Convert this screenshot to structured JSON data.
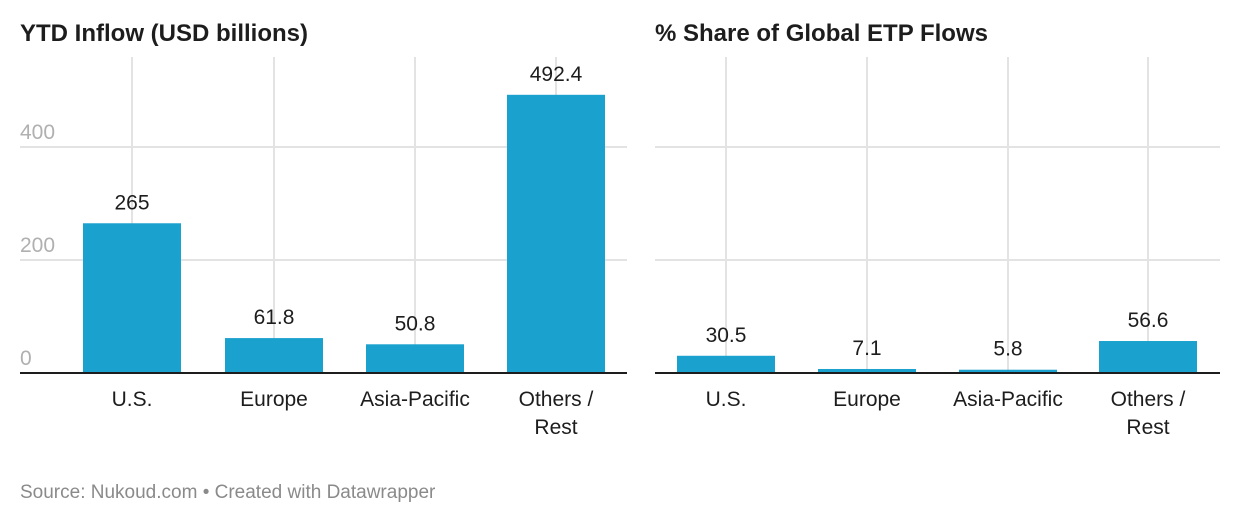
{
  "chart_data": [
    {
      "type": "bar",
      "title": "YTD Inflow (USD billions)",
      "categories": [
        "U.S.",
        "Europe",
        "Asia-Pacific",
        "Others / Rest"
      ],
      "values": [
        265,
        61.8,
        50.8,
        492.4
      ],
      "value_labels": [
        "265",
        "61.8",
        "50.8",
        "492.4"
      ],
      "yticks": [
        0,
        200,
        400
      ],
      "ytick_labels": [
        "0",
        "200",
        "400"
      ],
      "ylim": [
        0,
        560
      ],
      "grid": true,
      "color": "#1aa1cd"
    },
    {
      "type": "bar",
      "title": "% Share of Global ETP Flows",
      "categories": [
        "U.S.",
        "Europe",
        "Asia-Pacific",
        "Others / Rest"
      ],
      "values": [
        30.5,
        7.1,
        5.8,
        56.6
      ],
      "value_labels": [
        "30.5",
        "7.1",
        "5.8",
        "56.6"
      ],
      "yticks": [
        0,
        200,
        400
      ],
      "ytick_labels": [],
      "ylim": [
        0,
        560
      ],
      "grid": true,
      "color": "#1aa1cd"
    }
  ],
  "footer": "Source: Nukoud.com • Created with Datawrapper"
}
